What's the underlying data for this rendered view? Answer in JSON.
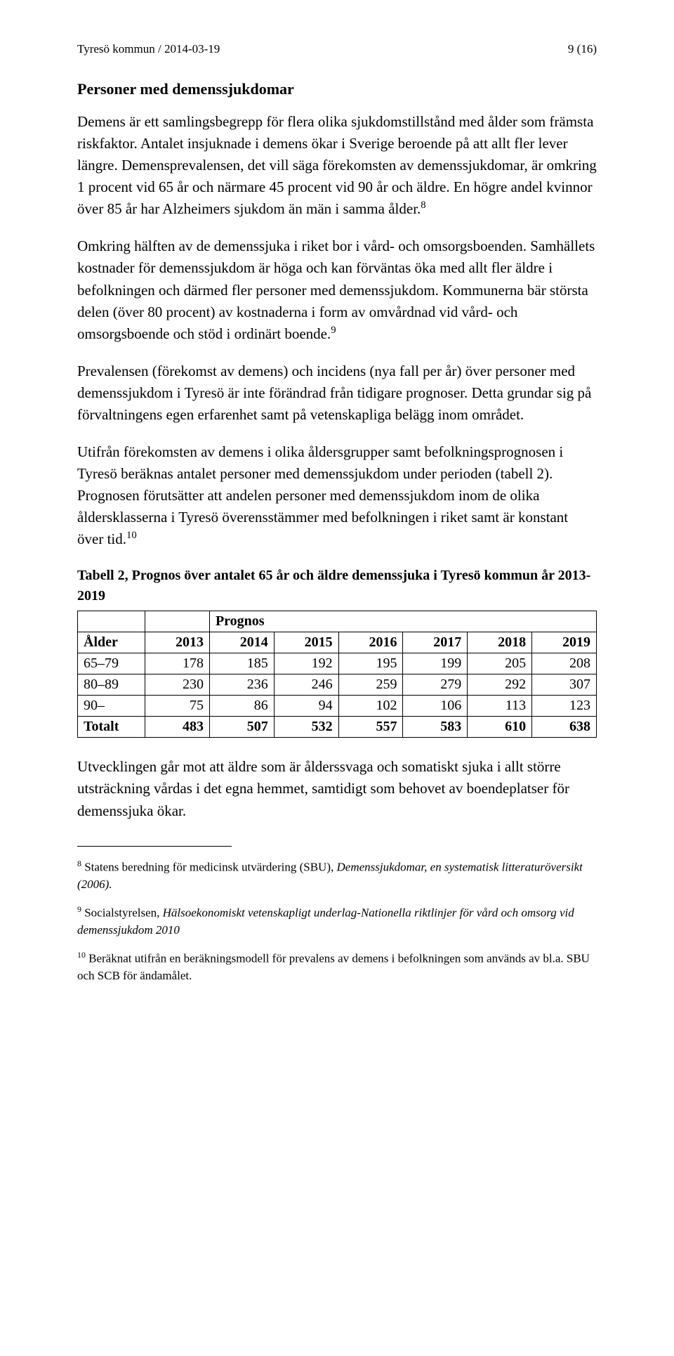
{
  "header": {
    "left": "Tyresö kommun / 2014-03-19",
    "right": "9 (16)"
  },
  "heading": "Personer med demenssjukdomar",
  "paragraphs": {
    "p1_a": "Demens är ett samlingsbegrepp för flera olika sjukdomstillstånd med ålder som främsta riskfaktor. Antalet insjuknade i demens ökar i Sverige beroende på att allt fler lever längre. Demensprevalensen, det vill säga förekomsten av demenssjukdomar, är omkring 1 procent vid 65 år och närmare 45 procent vid 90 år och äldre. En högre andel kvinnor över 85 år har Alzheimers sjukdom än män i samma ålder.",
    "p1_sup": "8",
    "p2_a": "Omkring hälften av de demenssjuka i riket bor i vård- och omsorgsboenden. Samhällets kostnader för demenssjukdom är höga och kan förväntas öka med allt fler äldre i befolkningen och därmed fler personer med demenssjukdom. Kommunerna bär största delen (över 80 procent) av kostnaderna i form av omvårdnad vid vård- och omsorgsboende och stöd i ordinärt boende.",
    "p2_sup": "9",
    "p3": "Prevalensen (förekomst av demens) och incidens (nya fall per år) över personer med demenssjukdom i Tyresö är inte förändrad från tidigare prognoser. Detta grundar sig på förvaltningens egen erfarenhet samt på vetenskapliga belägg inom området.",
    "p4_a": "Utifrån förekomsten av demens i olika åldersgrupper samt befolkningsprognosen i Tyresö beräknas antalet personer med demenssjukdom under perioden (tabell 2). Prognosen förutsätter att andelen personer med demenssjukdom inom de olika åldersklasserna i Tyresö överensstämmer med befolkningen i riket samt är konstant över tid.",
    "p4_sup": "10",
    "after_table": "Utvecklingen går mot att äldre som är ålderssvaga och somatiskt sjuka i allt större utsträckning vårdas i det egna hemmet, samtidigt som behovet av boendeplatser för demenssjuka ökar."
  },
  "table": {
    "caption": "Tabell 2, Prognos över antalet 65 år och äldre demenssjuka i Tyresö kommun år 2013-2019",
    "prognos_label": "Prognos",
    "col_headers": [
      "Ålder",
      "2013",
      "2014",
      "2015",
      "2016",
      "2017",
      "2018",
      "2019"
    ],
    "rows": [
      {
        "label": "65–79",
        "vals": [
          "178",
          "185",
          "192",
          "195",
          "199",
          "205",
          "208"
        ]
      },
      {
        "label": "80–89",
        "vals": [
          "230",
          "236",
          "246",
          "259",
          "279",
          "292",
          "307"
        ]
      },
      {
        "label": "90–",
        "vals": [
          "75",
          "86",
          "94",
          "102",
          "106",
          "113",
          "123"
        ]
      }
    ],
    "total": {
      "label": "Totalt",
      "vals": [
        "483",
        "507",
        "532",
        "557",
        "583",
        "610",
        "638"
      ]
    }
  },
  "footnotes": {
    "f8_pre": "8",
    "f8_a": " Statens beredning för medicinsk utvärdering (SBU), ",
    "f8_i": "Demenssjukdomar, en systematisk litteraturöversikt (2006).",
    "f9_pre": "9",
    "f9_a": " Socialstyrelsen, ",
    "f9_i": "Hälsoekonomiskt vetenskapligt underlag-Nationella riktlinjer för vård och omsorg vid demenssjukdom 2010",
    "f10_pre": "10",
    "f10_a": " Beräknat utifrån en beräkningsmodell för prevalens av demens i befolkningen som används av bl.a. SBU och SCB för ändamålet."
  }
}
